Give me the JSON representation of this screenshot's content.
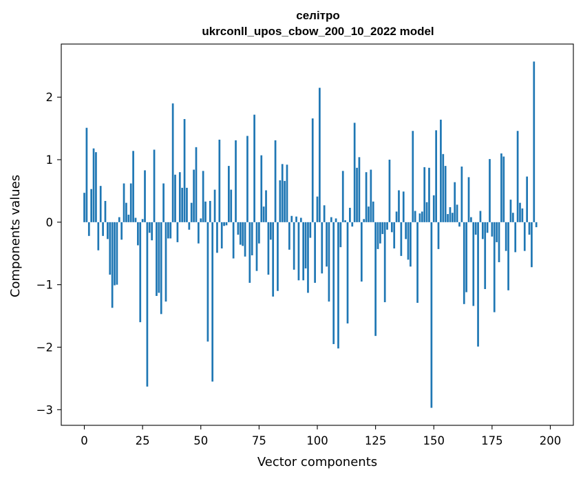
{
  "chart_data": {
    "type": "bar",
    "title": "селітро",
    "subtitle": "ukrconll_upos_cbow_200_10_2022 model",
    "xlabel": "Vector components",
    "ylabel": "Components values",
    "xlim": [
      -9.9,
      209.9
    ],
    "ylim": [
      -3.25,
      2.85
    ],
    "x_ticks": [
      0,
      25,
      50,
      75,
      100,
      125,
      150,
      175,
      200
    ],
    "y_ticks": [
      -3,
      -2,
      -1,
      0,
      1,
      2
    ],
    "grid": false,
    "legend": "none",
    "bar_color": "#1f77b4",
    "series": [
      {
        "values": [
          0.47,
          1.51,
          -0.22,
          0.53,
          1.18,
          1.12,
          -0.45,
          0.58,
          -0.22,
          0.34,
          -0.27,
          -0.84,
          -1.37,
          -1.01,
          -1.0,
          0.08,
          -0.28,
          0.62,
          0.31,
          0.12,
          0.62,
          1.14,
          0.07,
          -0.37,
          -1.6,
          0.05,
          0.83,
          -2.63,
          -0.17,
          -0.29,
          1.16,
          -1.18,
          -1.13,
          -1.47,
          0.62,
          -1.27,
          -0.26,
          -0.26,
          1.9,
          0.76,
          -0.32,
          0.8,
          0.55,
          1.65,
          0.55,
          -0.12,
          0.31,
          0.84,
          1.2,
          -0.34,
          0.06,
          0.82,
          0.33,
          -1.91,
          0.34,
          -2.55,
          0.52,
          -0.49,
          1.32,
          -0.42,
          -0.06,
          -0.05,
          0.9,
          0.52,
          -0.58,
          1.31,
          -0.2,
          -0.36,
          -0.38,
          -0.55,
          1.38,
          -0.97,
          -0.53,
          1.72,
          -0.78,
          -0.34,
          1.07,
          0.25,
          0.51,
          -0.84,
          -0.28,
          -1.19,
          1.31,
          -1.1,
          0.67,
          0.93,
          0.66,
          0.92,
          -0.44,
          0.1,
          -0.76,
          0.09,
          -0.93,
          0.07,
          -0.93,
          -0.74,
          -1.13,
          -0.25,
          1.66,
          -0.97,
          0.41,
          2.15,
          -0.82,
          0.27,
          -0.71,
          -1.27,
          0.08,
          -1.95,
          0.06,
          -2.02,
          -0.4,
          0.82,
          0.03,
          -1.62,
          0.23,
          -0.07,
          1.59,
          0.87,
          1.04,
          -0.95,
          0.05,
          0.8,
          0.25,
          0.84,
          0.33,
          -1.82,
          -0.43,
          -0.34,
          -0.19,
          -1.28,
          -0.12,
          1.0,
          -0.16,
          -0.42,
          0.17,
          0.51,
          -0.54,
          0.49,
          -0.27,
          -0.6,
          -0.71,
          1.46,
          0.18,
          -1.29,
          0.14,
          0.17,
          0.88,
          0.32,
          0.87,
          -2.97,
          0.43,
          1.47,
          -0.43,
          1.64,
          1.09,
          0.9,
          0.13,
          0.24,
          0.15,
          0.64,
          0.28,
          -0.07,
          0.89,
          -1.31,
          -1.12,
          0.72,
          0.08,
          -1.34,
          -0.2,
          -1.99,
          0.18,
          -0.27,
          -1.07,
          -0.17,
          1.01,
          -0.23,
          -1.44,
          -0.32,
          -0.64,
          1.1,
          1.05,
          -0.46,
          -1.09,
          0.36,
          0.15,
          -0.48,
          1.46,
          0.31,
          0.22,
          -0.46,
          0.73,
          -0.2,
          -0.72,
          2.57,
          -0.08
        ]
      }
    ]
  }
}
